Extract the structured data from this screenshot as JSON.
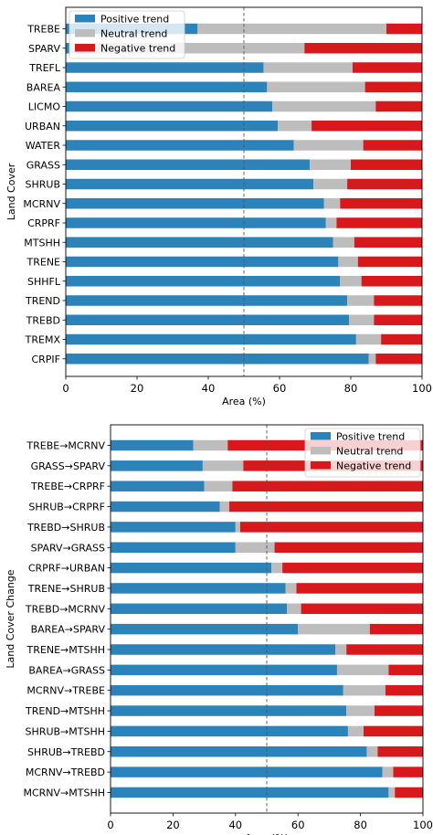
{
  "colors": {
    "positive": "#2b83ba",
    "neutral": "#bdbdbd",
    "negative": "#d7191c"
  },
  "chart_data": [
    {
      "type": "bar",
      "orientation": "horizontal",
      "stacked": true,
      "title": "",
      "xlabel": "Area (%)",
      "ylabel": "Land Cover",
      "xlim": [
        0,
        100
      ],
      "xticks": [
        0,
        20,
        40,
        60,
        80,
        100
      ],
      "reference_line_x": 50,
      "grid": false,
      "legend_position": "top-left",
      "categories": [
        "TREBE",
        "SPARV",
        "TREFL",
        "BAREA",
        "LICMO",
        "URBAN",
        "WATER",
        "GRASS",
        "SHRUB",
        "MCRNV",
        "CRPRF",
        "MTSHH",
        "TRENE",
        "SHHFL",
        "TREND",
        "TREBD",
        "TREMX",
        "CRPIF"
      ],
      "series": [
        {
          "name": "Positive trend",
          "color": "#2b83ba",
          "values": [
            37,
            1,
            55.5,
            56.5,
            58,
            59.5,
            64,
            68.5,
            69.5,
            72.5,
            73,
            75,
            76.5,
            77,
            79,
            79.5,
            81.5,
            85
          ]
        },
        {
          "name": "Neutral trend",
          "color": "#bdbdbd",
          "values": [
            53,
            66,
            25,
            27.5,
            29,
            9.5,
            19.5,
            11.5,
            9.5,
            4.5,
            3,
            6,
            5.5,
            6,
            7.5,
            7,
            7,
            2
          ]
        },
        {
          "name": "Negative trend",
          "color": "#d7191c",
          "values": [
            10,
            33,
            19.5,
            16,
            13,
            31,
            16.5,
            20,
            21,
            23,
            24,
            19,
            18,
            17,
            13.5,
            13.5,
            11.5,
            13
          ]
        }
      ]
    },
    {
      "type": "bar",
      "orientation": "horizontal",
      "stacked": true,
      "title": "",
      "xlabel": "Area (%)",
      "ylabel": "Land Cover Change",
      "xlim": [
        0,
        100
      ],
      "xticks": [
        0,
        20,
        40,
        60,
        80,
        100
      ],
      "reference_line_x": 50,
      "grid": false,
      "legend_position": "top-right",
      "categories": [
        "TREBE→MCRNV",
        "GRASS→SPARV",
        "TREBE→CRPRF",
        "SHRUB→CRPRF",
        "TREBD→SHRUB",
        "SPARV→GRASS",
        "CRPRF→URBAN",
        "TRENE→SHRUB",
        "TREBD→MCRNV",
        "BAREA→SPARV",
        "TRENE→MTSHH",
        "BAREA→GRASS",
        "MCRNV→TREBE",
        "TREND→MTSHH",
        "SHRUB→MTSHH",
        "SHRUB→TREBD",
        "MCRNV→TREBD",
        "MCRNV→MTSHH"
      ],
      "series": [
        {
          "name": "Positive trend",
          "color": "#2b83ba",
          "values": [
            26.5,
            29.5,
            30,
            35,
            40,
            40,
            51.5,
            56,
            56.5,
            60,
            72,
            72.5,
            74.5,
            75.5,
            76,
            82,
            87,
            89
          ]
        },
        {
          "name": "Neutral trend",
          "color": "#bdbdbd",
          "values": [
            11,
            13,
            9,
            3,
            1.5,
            12.5,
            3.5,
            3.5,
            4.5,
            23,
            3.5,
            16.5,
            13.5,
            9,
            5,
            3.5,
            3.5,
            2
          ]
        },
        {
          "name": "Negative trend",
          "color": "#d7191c",
          "values": [
            62.5,
            57.5,
            61,
            62,
            58.5,
            47.5,
            45,
            40.5,
            39,
            17,
            24.5,
            11,
            12,
            15.5,
            19,
            14.5,
            9.5,
            9
          ]
        }
      ]
    }
  ]
}
